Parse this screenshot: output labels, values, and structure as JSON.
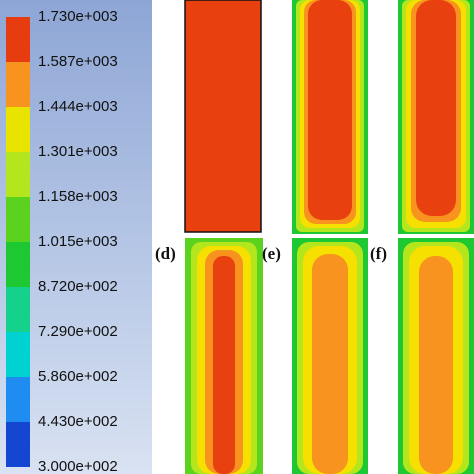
{
  "colorbar": {
    "labels": [
      "1.730e+003",
      "1.587e+003",
      "1.444e+003",
      "1.301e+003",
      "1.158e+003",
      "1.015e+003",
      "8.720e+002",
      "7.290e+002",
      "5.860e+002",
      "4.430e+002",
      "3.000e+002"
    ]
  },
  "panels": [
    {
      "label": "(d)"
    },
    {
      "label": "(e)"
    },
    {
      "label": "(f)"
    }
  ]
}
